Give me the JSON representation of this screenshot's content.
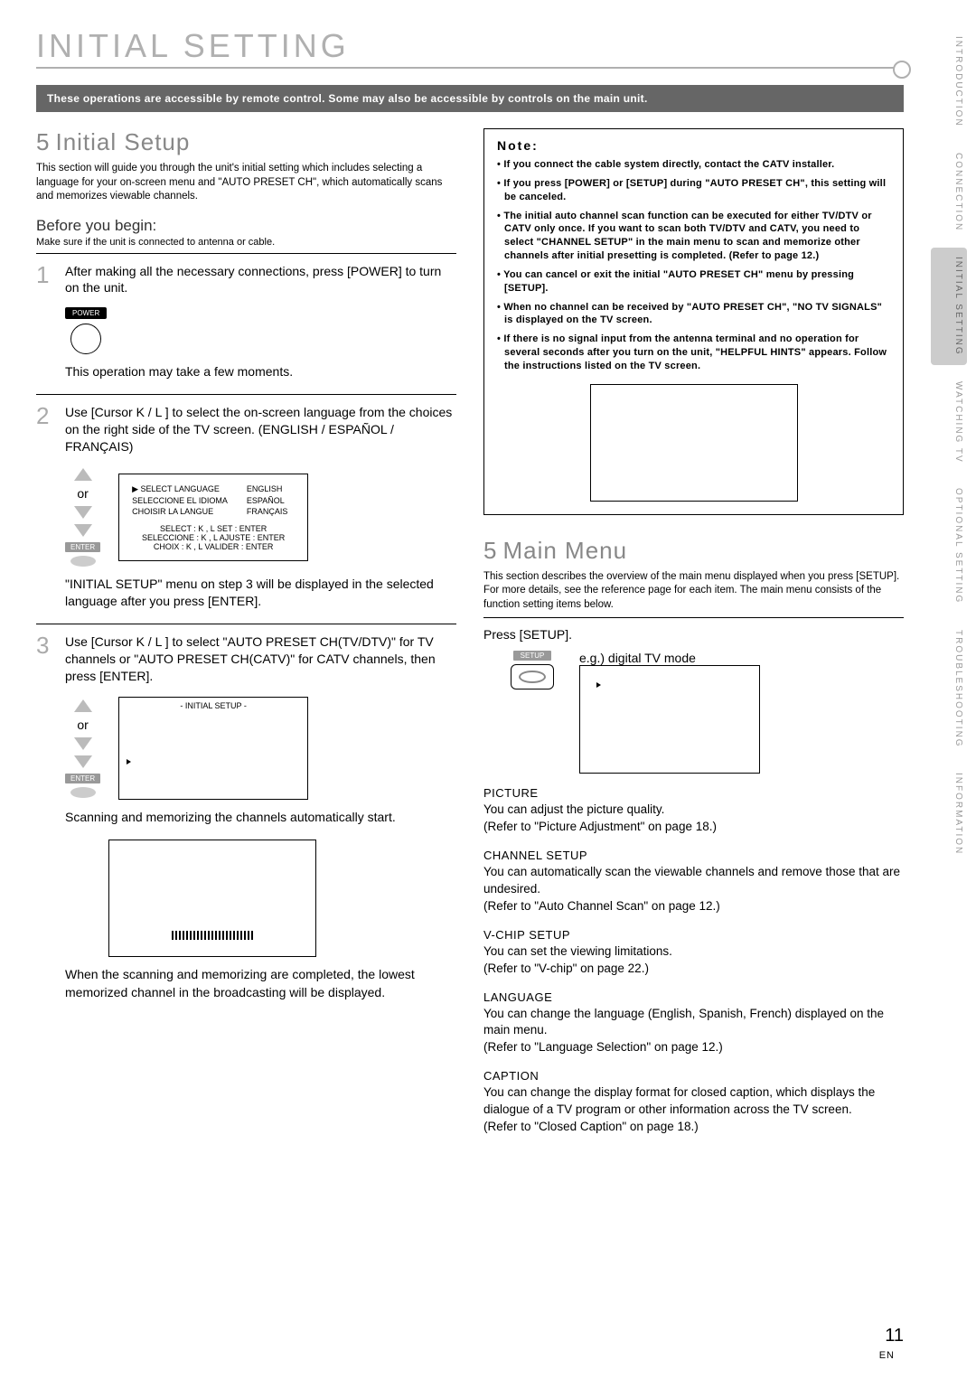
{
  "sidebar": {
    "tabs": [
      "INTRODUCTION",
      "CONNECTION",
      "INITIAL SETTING",
      "WATCHING TV",
      "OPTIONAL SETTING",
      "TROUBLESHOOTING",
      "INFORMATION"
    ],
    "active_index": 2
  },
  "chapter_title": "INITIAL SETTING",
  "banner": "These operations are accessible by remote control. Some may also be accessible by controls on the main unit.",
  "left": {
    "h2": "Initial Setup",
    "marker": "5",
    "intro": "This section will guide you through the unit's initial setting which includes selecting a language for your on-screen menu and \"AUTO PRESET CH\", which automatically scans and memorizes viewable channels.",
    "before_h": "Before you begin:",
    "before_t": "Make sure if the unit is connected to antenna or cable.",
    "step1": "After making all the necessary connections, press [POWER] to turn on the unit.",
    "power_label": "POWER",
    "step1_cap": "This operation may take a few moments.",
    "step2": "Use [Cursor K / L ] to select the on-screen language from the choices on the right side of the TV screen. (ENGLISH / ESPAÑOL / FRANÇAIS)",
    "or": "or",
    "enter": "ENTER",
    "lang_rows": [
      [
        "▶ SELECT LANGUAGE",
        "ENGLISH"
      ],
      [
        "SELECCIONE EL IDIOMA",
        "ESPAÑOL"
      ],
      [
        "CHOISIR LA LANGUE",
        "FRANÇAIS"
      ]
    ],
    "lang_footer": [
      "SELECT : K , L     SET : ENTER",
      "SELECCIONE : K , L   AJUSTE : ENTER",
      "CHOIX : K , L   VALIDER : ENTER"
    ],
    "step2_cap": "\"INITIAL SETUP\" menu on step 3 will be displayed in the selected language after you press [ENTER].",
    "step3": "Use [Cursor K / L ] to select \"AUTO PRESET CH(TV/DTV)\" for TV channels or \"AUTO PRESET CH(CATV)\" for CATV channels, then press [ENTER].",
    "menu2_title": "- INITIAL SETUP -",
    "step3_cap1": "Scanning and memorizing the channels automatically start.",
    "step3_cap2": "When the scanning and memorizing are completed, the lowest memorized channel in the broadcasting will be displayed."
  },
  "right": {
    "note_title": "Note:",
    "notes": [
      "If you connect the cable system directly, contact the CATV installer.",
      "If you press [POWER] or [SETUP] during \"AUTO PRESET CH\", this setting will be canceled.",
      "The initial auto channel scan function can be executed for either TV/DTV or CATV only once. If you want to scan both TV/DTV and CATV, you need to select \"CHANNEL SETUP\" in the main menu to scan and memorize other channels after initial presetting is completed. (Refer to page 12.)",
      "You can cancel or exit the initial \"AUTO PRESET CH\" menu by pressing [SETUP].",
      "When no channel can be received by \"AUTO PRESET CH\", \"NO TV SIGNALS\" is displayed on the TV screen.",
      "If there is no signal input from the antenna terminal and no operation for several seconds after you turn on the unit, \"HELPFUL HINTS\" appears. Follow the instructions listed on the TV screen."
    ],
    "h2": "Main Menu",
    "marker": "5",
    "intro": "This section describes the overview of the main menu displayed when you press [SETUP]. For more details, see the reference page for each item. The main menu consists of the function setting items below.",
    "press": "Press [SETUP].",
    "setup_label": "SETUP",
    "eg": "e.g.) digital TV mode",
    "items": [
      {
        "h": "PICTURE",
        "b": "You can adjust the picture quality.\n(Refer to \"Picture Adjustment\" on page 18.)"
      },
      {
        "h": "CHANNEL SETUP",
        "b": "You can automatically scan the viewable channels and remove those that are undesired.\n(Refer to \"Auto Channel Scan\" on page 12.)"
      },
      {
        "h": "V-CHIP SETUP",
        "b": "You can set the viewing limitations.\n(Refer to \"V-chip\" on page 22.)"
      },
      {
        "h": "LANGUAGE",
        "b": "You can change the language (English, Spanish, French) displayed on the main menu.\n(Refer to \"Language Selection\" on page 12.)"
      },
      {
        "h": "CAPTION",
        "b": "You can change the display format for closed caption, which displays the dialogue of a TV program or other information across the TV screen.\n(Refer to \"Closed Caption\" on page 18.)"
      }
    ]
  },
  "page_number": "11",
  "page_lang": "EN"
}
